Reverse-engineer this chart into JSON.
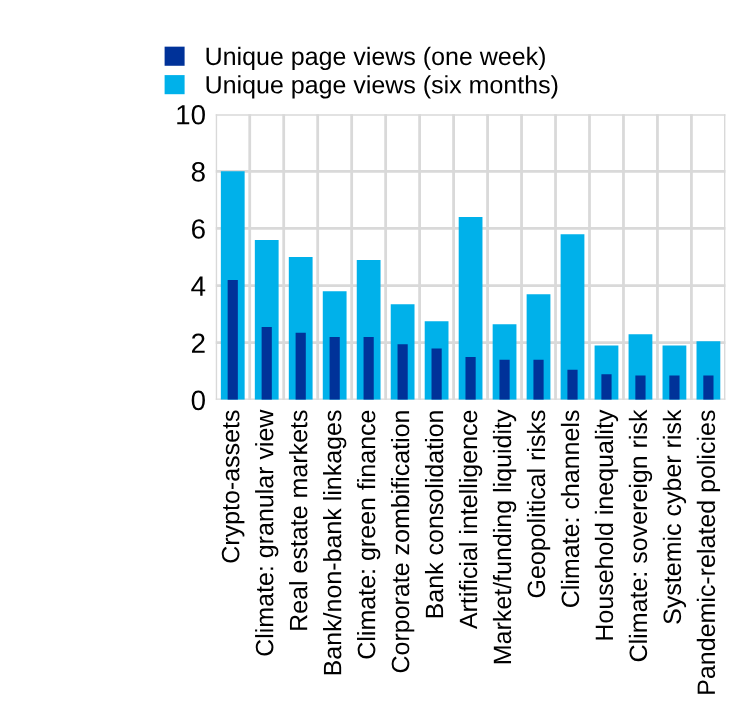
{
  "chart_data": {
    "type": "bar",
    "categories": [
      "Crypto-assets",
      "Climate: granular view",
      "Real estate markets",
      "Bank/non-bank linkages",
      "Climate: green finance",
      "Corporate zombification",
      "Bank consolidation",
      "Artificial intelligence",
      "Market/funding liquidity",
      "Geopolitical risks",
      "Climate: channels",
      "Household inequality",
      "Climate: sovereign risk",
      "Systemic cyber risk",
      "Pandemic-related policies"
    ],
    "series": [
      {
        "name": "Unique page views (one week)",
        "color": "#003299",
        "values": [
          4.2,
          2.55,
          2.35,
          2.2,
          2.2,
          1.95,
          1.8,
          1.5,
          1.4,
          1.4,
          1.05,
          0.9,
          0.85,
          0.85,
          0.85
        ]
      },
      {
        "name": "Unique page views (six months)",
        "color": "#00b1ea",
        "values": [
          8.0,
          5.6,
          5.0,
          3.8,
          4.9,
          3.35,
          2.75,
          6.4,
          2.65,
          3.7,
          5.8,
          1.9,
          2.3,
          1.9,
          2.05
        ]
      }
    ],
    "ylim": [
      0,
      10
    ],
    "yticks": [
      0,
      2,
      4,
      6,
      8,
      10
    ],
    "grid": true,
    "legend": "top left"
  }
}
